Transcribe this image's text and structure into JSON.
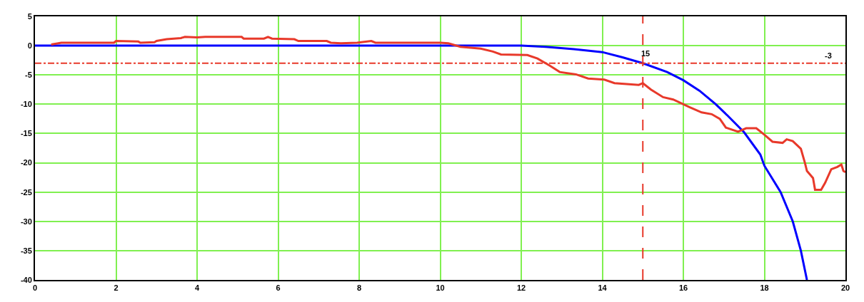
{
  "chart_data": {
    "type": "line",
    "xlim": [
      0,
      20
    ],
    "xticks": [
      0,
      2,
      4,
      6,
      8,
      10,
      12,
      14,
      16,
      18,
      20
    ],
    "ylim": [
      -40,
      5
    ],
    "yticks": [
      5,
      0,
      -5,
      -10,
      -15,
      -20,
      -25,
      -30,
      -35,
      -40
    ],
    "grid": true,
    "series": [
      {
        "color": "#0000ff",
        "x": [
          0,
          12.0,
          12.6,
          13.3,
          14.0,
          14.5,
          15.0,
          15.6,
          16.0,
          16.4,
          16.8,
          17.1,
          17.5,
          17.9,
          18.0,
          18.4,
          18.7,
          18.9,
          19.05
        ],
        "values": [
          0,
          0,
          -0.2,
          -0.6,
          -1.1,
          -2.0,
          -3.0,
          -4.5,
          -5.9,
          -7.7,
          -10.0,
          -12.0,
          -14.8,
          -18.6,
          -20.5,
          -25,
          -30,
          -35,
          -40
        ]
      },
      {
        "color": "#e8392a",
        "x": [
          0.4,
          0.65,
          1.95,
          2.0,
          2.55,
          2.6,
          2.95,
          3.0,
          3.25,
          3.6,
          3.7,
          4.0,
          4.2,
          5.1,
          5.15,
          5.65,
          5.75,
          5.85,
          6.4,
          6.5,
          7.2,
          7.3,
          7.55,
          7.95,
          8.3,
          8.4,
          10.0,
          10.2,
          10.5,
          11.0,
          11.3,
          11.5,
          12.15,
          12.4,
          12.7,
          12.95,
          13.35,
          13.65,
          14.05,
          14.3,
          14.9,
          15.0,
          15.2,
          15.5,
          15.75,
          16.0,
          16.15,
          16.45,
          16.7,
          16.9,
          17.05,
          17.35,
          17.55,
          17.8,
          18.0,
          18.2,
          18.45,
          18.55,
          18.7,
          18.9,
          19.0,
          19.05,
          19.2,
          19.25,
          19.4,
          19.5,
          19.65,
          19.8,
          19.9,
          19.95,
          20.0
        ],
        "values": [
          0.2,
          0.5,
          0.5,
          0.8,
          0.7,
          0.5,
          0.6,
          0.8,
          1.1,
          1.3,
          1.5,
          1.4,
          1.5,
          1.5,
          1.2,
          1.2,
          1.5,
          1.2,
          1.1,
          0.8,
          0.8,
          0.5,
          0.4,
          0.5,
          0.8,
          0.5,
          0.5,
          0.4,
          -0.2,
          -0.5,
          -1.0,
          -1.5,
          -1.6,
          -2.2,
          -3.4,
          -4.5,
          -4.9,
          -5.6,
          -5.8,
          -6.4,
          -6.7,
          -6.4,
          -7.5,
          -8.8,
          -9.2,
          -10.0,
          -10.5,
          -11.4,
          -11.7,
          -12.5,
          -14.0,
          -14.7,
          -14.1,
          -14.1,
          -15.2,
          -16.4,
          -16.6,
          -16.0,
          -16.3,
          -17.6,
          -20.0,
          -21.4,
          -22.6,
          -24.6,
          -24.6,
          -23.4,
          -21.1,
          -20.7,
          -20.3,
          -21.4,
          -21.6
        ]
      }
    ],
    "ref_lines": [
      {
        "axis": "x",
        "value": 15,
        "label": "15",
        "color": "#e8392a",
        "line_style": "dashed"
      },
      {
        "axis": "y",
        "value": -3,
        "label": "-3",
        "color": "#e8392a",
        "line_style": "dashdot"
      }
    ]
  }
}
